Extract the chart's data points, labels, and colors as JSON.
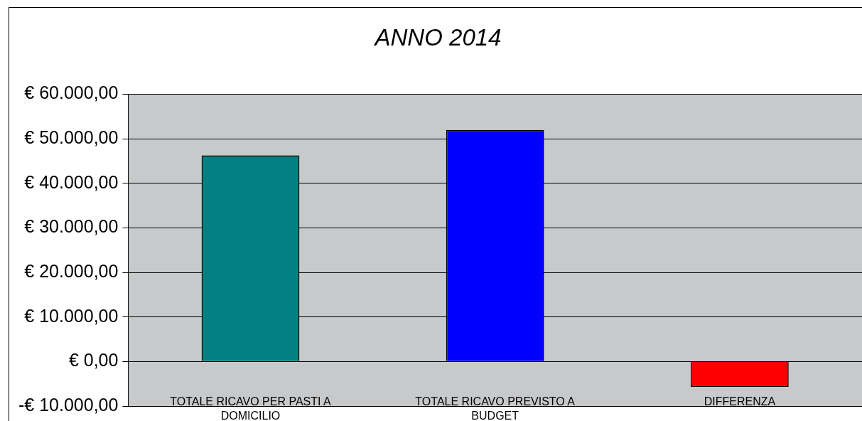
{
  "chart_data": {
    "type": "bar",
    "title": "ANNO 2014",
    "categories": [
      "TOTALE RICAVO PER PASTI A DOMICILIO",
      "TOTALE RICAVO PREVISTO A BUDGET",
      "DIFFERENZA"
    ],
    "values": [
      46300,
      52000,
      -5700
    ],
    "colors": [
      "#008080",
      "#0000ff",
      "#ff0000"
    ],
    "ylim": [
      -10000,
      60000
    ],
    "yticks": [
      {
        "value": -10000,
        "label": "-€ 10.000,00"
      },
      {
        "value": 0,
        "label": "€ 0,00"
      },
      {
        "value": 10000,
        "label": "€ 10.000,00"
      },
      {
        "value": 20000,
        "label": "€ 20.000,00"
      },
      {
        "value": 30000,
        "label": "€ 30.000,00"
      },
      {
        "value": 40000,
        "label": "€ 40.000,00"
      },
      {
        "value": 50000,
        "label": "€ 50.000,00"
      },
      {
        "value": 60000,
        "label": "€ 60.000,00"
      }
    ],
    "grid": "y",
    "legend": false
  }
}
